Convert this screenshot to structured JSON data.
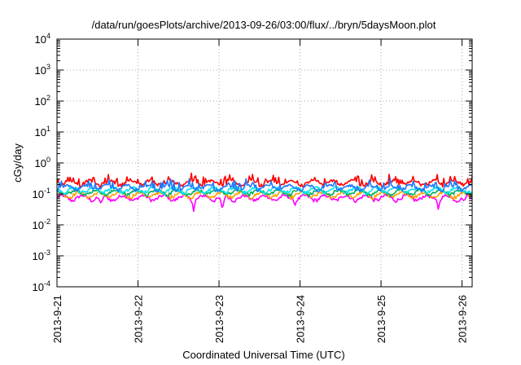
{
  "chart_data": {
    "type": "line",
    "title": "/data/run/goesPlots/archive/2013-09-26/03:00/flux/../bryn/5daysMoon.plot",
    "xlabel": "Coordinated Universal Time (UTC)",
    "ylabel": "cGy/day",
    "y_scale": "log",
    "ylim": [
      0.0001,
      10000
    ],
    "xlim": [
      "2013-09-21T00:00",
      "2013-09-26T03:00"
    ],
    "x_ticks": [
      "2013-9-21",
      "2013-9-22",
      "2013-9-23",
      "2013-9-24",
      "2013-9-25",
      "2013-9-26"
    ],
    "y_ticks": [
      {
        "base": "10",
        "exp": "-4"
      },
      {
        "base": "10",
        "exp": "-3"
      },
      {
        "base": "10",
        "exp": "-2"
      },
      {
        "base": "10",
        "exp": "-1"
      },
      {
        "base": "10",
        "exp": "0"
      },
      {
        "base": "10",
        "exp": "1"
      },
      {
        "base": "10",
        "exp": "2"
      },
      {
        "base": "10",
        "exp": "3"
      },
      {
        "base": "10",
        "exp": "4"
      }
    ],
    "grid": true,
    "series": [
      {
        "color": "#ff00ff",
        "baseline": 0.075,
        "dips": [
          [
            "2013-09-21T13:00",
            0.05
          ],
          [
            "2013-09-22T16:30",
            0.025
          ],
          [
            "2013-09-23T01:00",
            0.03
          ],
          [
            "2013-09-23T22:30",
            0.04
          ],
          [
            "2013-09-25T17:00",
            0.03
          ],
          [
            "2013-09-26T00:30",
            0.06
          ]
        ]
      },
      {
        "color": "#ffa000",
        "baseline": 0.095
      },
      {
        "color": "#00b060",
        "baseline": 0.115
      },
      {
        "color": "#00e5ee",
        "baseline": 0.135
      },
      {
        "color": "#ff0000",
        "baseline": 0.23
      },
      {
        "color": "#1e78ff",
        "baseline": 0.16
      }
    ]
  }
}
